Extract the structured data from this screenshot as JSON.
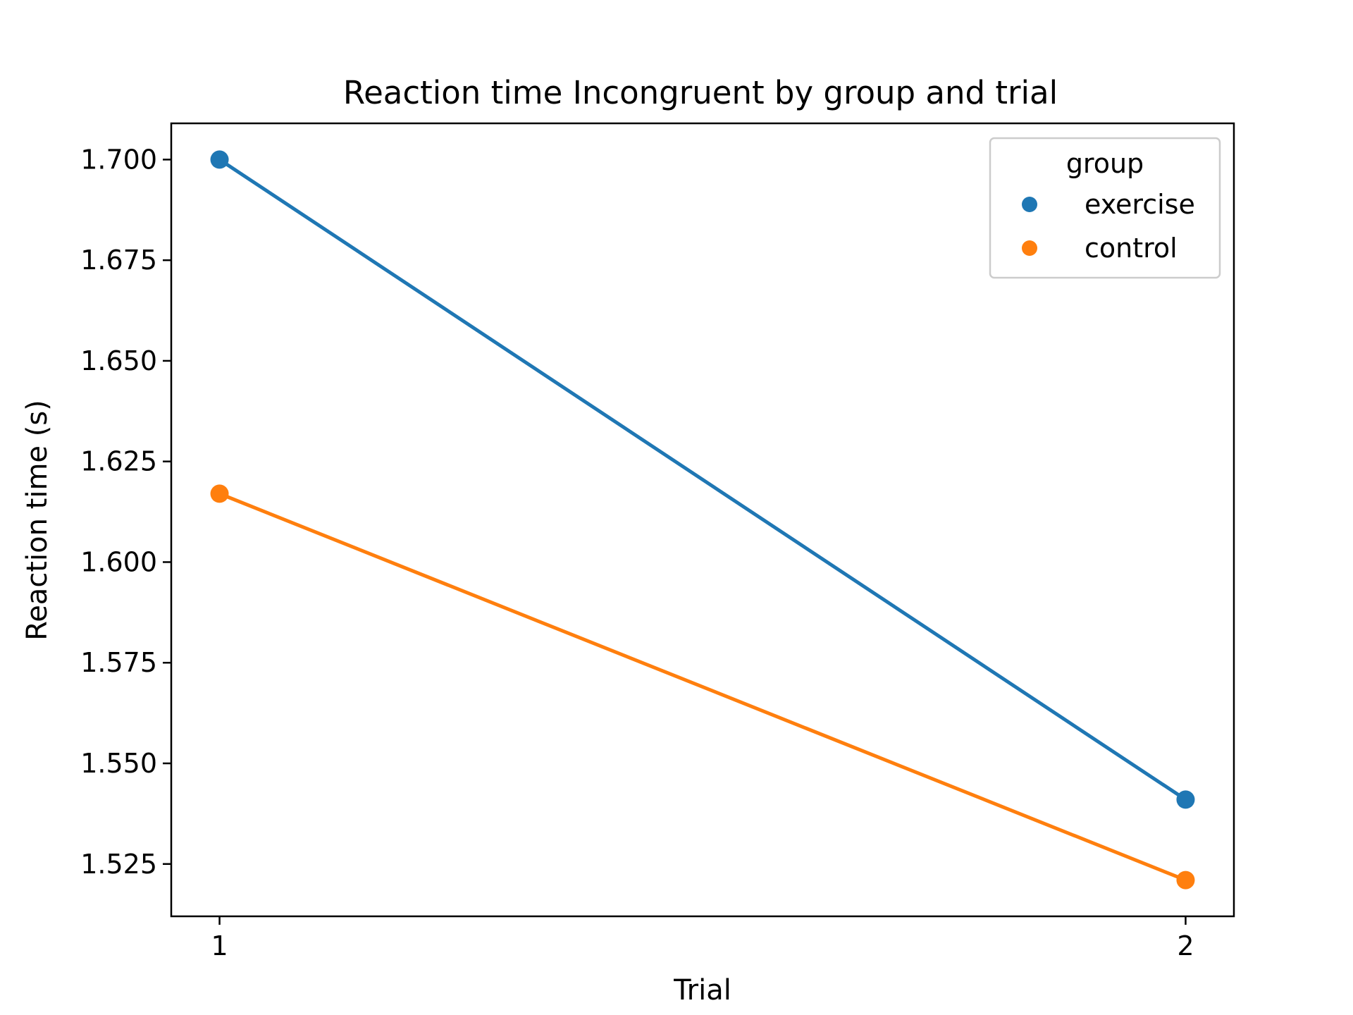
{
  "chart_data": {
    "type": "line",
    "title": "Reaction time Incongruent by group and trial",
    "xlabel": "Trial",
    "ylabel": "Reaction time (s)",
    "x": [
      1,
      2
    ],
    "x_tick_labels": [
      "1",
      "2"
    ],
    "y_ticks": [
      1.525,
      1.55,
      1.575,
      1.6,
      1.625,
      1.65,
      1.675,
      1.7
    ],
    "y_tick_labels": [
      "1.525",
      "1.550",
      "1.575",
      "1.600",
      "1.625",
      "1.650",
      "1.675",
      "1.700"
    ],
    "ylim": [
      1.512,
      1.709
    ],
    "xlim": [
      0.95,
      2.05
    ],
    "grid": false,
    "legend": {
      "title": "group",
      "placement": "top-right"
    },
    "series": [
      {
        "name": "exercise",
        "color": "#1f77b4",
        "values": [
          1.7,
          1.541
        ]
      },
      {
        "name": "control",
        "color": "#ff7f0e",
        "values": [
          1.617,
          1.521
        ]
      }
    ]
  }
}
